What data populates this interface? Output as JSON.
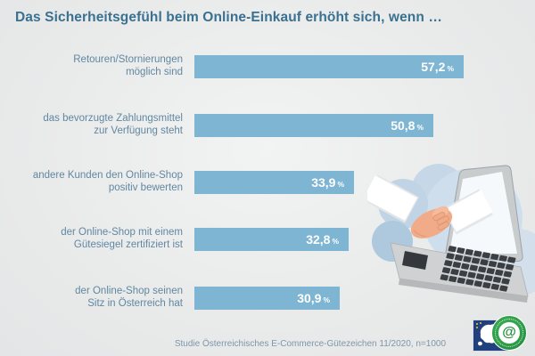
{
  "title": "Das Sicherheitsgefühl beim Online-Einkauf erhöht sich, wenn …",
  "source": "Studie Österreichisches E-Commerce-Gütezeichen 11/2020, n=1000",
  "percent_symbol": "%",
  "colors": {
    "background": "#e9eaea",
    "bar": "#7eb5d3",
    "title_text": "#3a7090",
    "label_text": "#6187a1",
    "value_text": "#ffffff",
    "source_text": "#7d97a9",
    "seal_green": "#2f9e49",
    "eu_blue": "#20417d"
  },
  "chart_data": {
    "type": "bar",
    "orientation": "horizontal",
    "title": "Das Sicherheitsgefühl beim Online-Einkauf erhöht sich, wenn …",
    "categories": [
      "Retouren/Stornierungen\nmöglich sind",
      "das bevorzugte Zahlungsmittel\nzur Verfügung steht",
      "andere Kunden den Online-Shop\npositiv bewerten",
      "der Online-Shop mit einem\nGütesiegel zertifiziert ist",
      "der Online-Shop seinen\nSitz in Österreich hat"
    ],
    "values": [
      57.2,
      50.8,
      33.9,
      32.8,
      30.9
    ],
    "values_display": [
      "57,2",
      "50,8",
      "33,9",
      "32,8",
      "30,9"
    ],
    "unit": "%",
    "xlim": [
      0,
      60
    ],
    "grid": false,
    "legend": "none",
    "source": "Studie Österreichisches E-Commerce-Gütezeichen 11/2020, n=1000"
  },
  "illustration": {
    "name": "handshake-through-laptop-screen",
    "description": "Two hands shaking, one reaching out of an open laptop screen, with light blue cloud shapes behind"
  },
  "logos": {
    "eu_logo": "europe-map-blue-square-logo",
    "seal": "oesterreichisches-e-commerce-guetezeichen-seal",
    "seal_glyph": "@"
  }
}
